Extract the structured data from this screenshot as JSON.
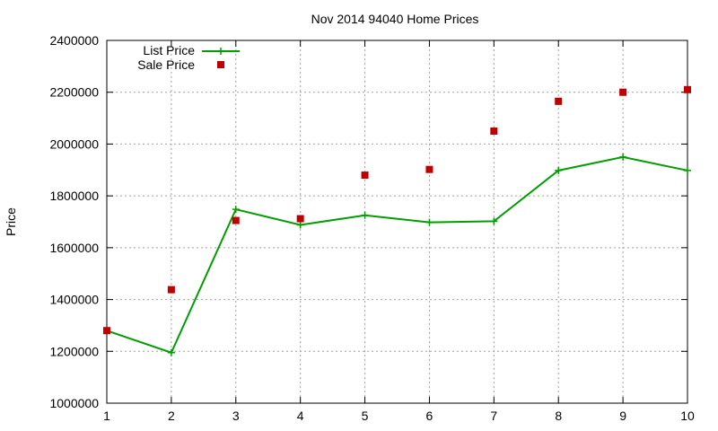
{
  "chart_data": {
    "type": "line",
    "title": "Nov 2014 94040 Home Prices",
    "xlabel": "",
    "ylabel": "Price",
    "x": [
      1,
      2,
      3,
      4,
      5,
      6,
      7,
      8,
      9,
      10
    ],
    "xlim": [
      1,
      10
    ],
    "ylim": [
      1000000,
      2400000
    ],
    "xticks": [
      "1",
      "2",
      "3",
      "4",
      "5",
      "6",
      "7",
      "8",
      "9",
      "10"
    ],
    "yticks": [
      "1000000",
      "1200000",
      "1400000",
      "1600000",
      "1800000",
      "2000000",
      "2200000",
      "2400000"
    ],
    "grid": true,
    "legend_position": "top-left",
    "series": [
      {
        "name": "List Price",
        "style": "line-with-plus-markers",
        "color": "#009e00",
        "values": [
          1280000,
          1195000,
          1748000,
          1688000,
          1725000,
          1698000,
          1702000,
          1898000,
          1950000,
          1898000
        ]
      },
      {
        "name": "Sale Price",
        "style": "square-markers",
        "color": "#c00000",
        "values": [
          1280000,
          1438000,
          1705000,
          1712000,
          1880000,
          1902000,
          2050000,
          2165000,
          2200000,
          2210000
        ]
      }
    ]
  }
}
